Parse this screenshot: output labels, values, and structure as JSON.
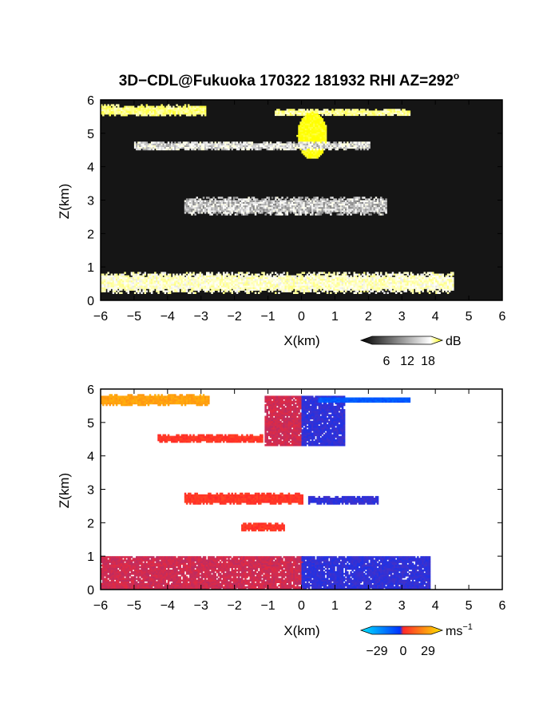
{
  "title": "3D−CDL@Fukuoka 170322 181932 RHI AZ=292",
  "title_degree": "o",
  "chart_data": [
    {
      "type": "heatmap",
      "panel": "reflectivity",
      "xlabel": "X(km)",
      "ylabel": "Z(km)",
      "xlim": [
        -6,
        6
      ],
      "ylim": [
        0,
        6
      ],
      "xticks": [
        "−6",
        "−5",
        "−4",
        "−3",
        "−2",
        "−1",
        "0",
        "1",
        "2",
        "3",
        "4",
        "5",
        "6"
      ],
      "yticks": [
        "0",
        "1",
        "2",
        "3",
        "4",
        "5",
        "6"
      ],
      "colorbar": {
        "unit": "dB",
        "ticks": [
          "6",
          "12",
          "18"
        ],
        "range": [
          0,
          20
        ],
        "colors": [
          "#000000",
          "#ffffff",
          "#ffff00"
        ]
      },
      "features": [
        {
          "kind": "band",
          "x": [
            -6.0,
            -2.9
          ],
          "z": 5.65,
          "thickness": 0.18,
          "value": 15
        },
        {
          "kind": "band",
          "x": [
            -0.8,
            3.2
          ],
          "z": 5.6,
          "thickness": 0.12,
          "value": 14
        },
        {
          "kind": "blob",
          "x": 0.3,
          "z": 4.9,
          "rx": 0.45,
          "rz": 0.7,
          "value": 20
        },
        {
          "kind": "band",
          "x": [
            -5.0,
            2.0
          ],
          "z": 4.6,
          "thickness": 0.15,
          "value": 9
        },
        {
          "kind": "band",
          "x": [
            -3.5,
            2.5
          ],
          "z": 2.8,
          "thickness": 0.3,
          "value": 8
        },
        {
          "kind": "band",
          "x": [
            -6.0,
            4.5
          ],
          "z": 0.5,
          "thickness": 0.35,
          "value": 12
        }
      ]
    },
    {
      "type": "heatmap",
      "panel": "doppler velocity",
      "xlabel": "X(km)",
      "ylabel": "Z(km)",
      "xlim": [
        -6,
        6
      ],
      "ylim": [
        0,
        6
      ],
      "xticks": [
        "−6",
        "−5",
        "−4",
        "−3",
        "−2",
        "−1",
        "0",
        "1",
        "2",
        "3",
        "4",
        "5",
        "6"
      ],
      "yticks": [
        "0",
        "1",
        "2",
        "3",
        "4",
        "5",
        "6"
      ],
      "colorbar": {
        "unit": "ms",
        "unit_exp": "−1",
        "ticks": [
          "−29",
          "0",
          "29"
        ],
        "range": [
          -29,
          29
        ],
        "colors": [
          "#00e5ff",
          "#0033ff",
          "#ff2a2a",
          "#ffe600"
        ]
      },
      "features": [
        {
          "kind": "band",
          "x": [
            -6.0,
            -2.8
          ],
          "z": 5.65,
          "thickness": 0.2,
          "value": 22
        },
        {
          "kind": "block",
          "x": [
            -1.1,
            0.0
          ],
          "z": [
            4.3,
            5.75
          ],
          "value": 6
        },
        {
          "kind": "block",
          "x": [
            0.0,
            1.3
          ],
          "z": [
            4.3,
            5.75
          ],
          "value": -6
        },
        {
          "kind": "band",
          "x": [
            0.5,
            3.2
          ],
          "z": 5.65,
          "thickness": 0.1,
          "value": -14
        },
        {
          "kind": "band",
          "x": [
            -4.3,
            -1.2
          ],
          "z": 4.5,
          "thickness": 0.15,
          "value": 11
        },
        {
          "kind": "band",
          "x": [
            -3.5,
            0.0
          ],
          "z": 2.7,
          "thickness": 0.2,
          "value": 11
        },
        {
          "kind": "band",
          "x": [
            0.2,
            2.3
          ],
          "z": 2.65,
          "thickness": 0.15,
          "value": -6
        },
        {
          "kind": "band",
          "x": [
            -1.8,
            -0.5
          ],
          "z": 1.85,
          "thickness": 0.15,
          "value": 11
        },
        {
          "kind": "block",
          "x": [
            -6.0,
            0.0
          ],
          "z": [
            0.0,
            1.0
          ],
          "value": 6
        },
        {
          "kind": "block",
          "x": [
            0.0,
            3.8
          ],
          "z": [
            0.0,
            1.0
          ],
          "value": -6
        }
      ]
    }
  ]
}
